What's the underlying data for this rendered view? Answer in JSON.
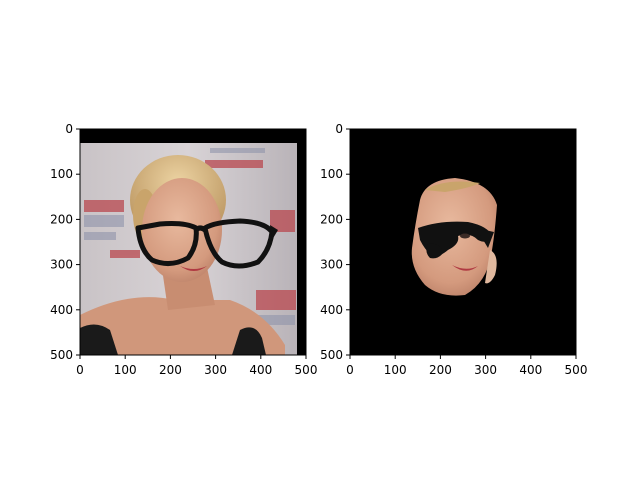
{
  "figure": {
    "panels": [
      {
        "name": "left-panel",
        "content": "photo of a smiling blonde woman wearing black glasses drawn over her eyes, event backdrop behind",
        "xticks": [
          "0",
          "100",
          "200",
          "300",
          "400",
          "500"
        ],
        "yticks": [
          "0",
          "100",
          "200",
          "300",
          "400",
          "500"
        ],
        "xlim": [
          0,
          500
        ],
        "ylim": [
          0,
          500
        ]
      },
      {
        "name": "right-panel",
        "content": "segmented face region on black background with glasses mask",
        "xticks": [
          "0",
          "100",
          "200",
          "300",
          "400",
          "500"
        ],
        "yticks": [
          "0",
          "100",
          "200",
          "300",
          "400",
          "500"
        ],
        "xlim": [
          0,
          500
        ],
        "ylim": [
          0,
          500
        ]
      }
    ],
    "colors": {
      "background": "#ffffff",
      "mask_background": "#000000",
      "skin": "#d9a184",
      "hair": "#d8b27a",
      "glasses": "#111111"
    }
  }
}
